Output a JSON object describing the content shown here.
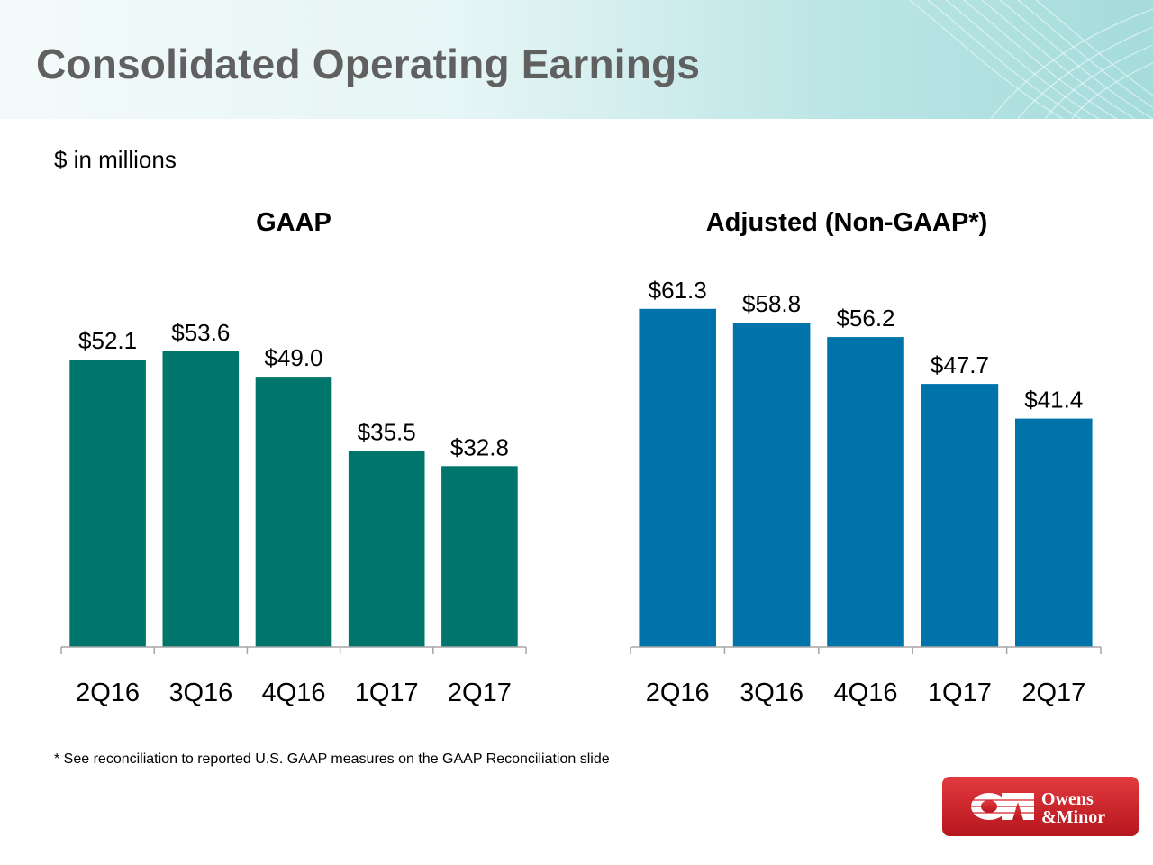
{
  "header": {
    "title": "Consolidated Operating Earnings"
  },
  "units_label": "$ in millions",
  "footnote": "* See reconciliation to reported U.S. GAAP measures on the GAAP Reconciliation slide",
  "logo": {
    "line1": "Owens",
    "line2": "&Minor",
    "mark": "OM",
    "color": "#d2232a"
  },
  "chart_data": [
    {
      "type": "bar",
      "title": "GAAP",
      "categories": [
        "2Q16",
        "3Q16",
        "4Q16",
        "1Q17",
        "2Q17"
      ],
      "values": [
        52.1,
        53.6,
        49.0,
        35.5,
        32.8
      ],
      "labels": [
        "$52.1",
        "$53.6",
        "$49.0",
        "$35.5",
        "$32.8"
      ],
      "color": "#00756b",
      "ylim": [
        0,
        64
      ],
      "grid": false,
      "legend": "none"
    },
    {
      "type": "bar",
      "title": "Adjusted (Non-GAAP*)",
      "categories": [
        "2Q16",
        "3Q16",
        "4Q16",
        "1Q17",
        "2Q17"
      ],
      "values": [
        61.3,
        58.8,
        56.2,
        47.7,
        41.4
      ],
      "labels": [
        "$61.3",
        "$58.8",
        "$56.2",
        "$47.7",
        "$41.4"
      ],
      "color": "#0074aa",
      "ylim": [
        0,
        64
      ],
      "grid": false,
      "legend": "none"
    }
  ]
}
